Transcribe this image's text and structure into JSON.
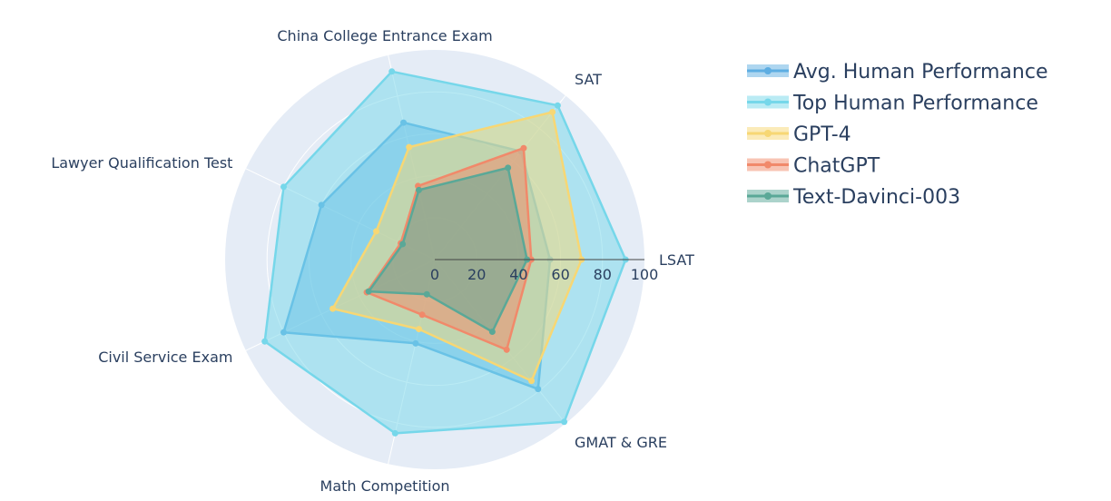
{
  "chart_data": {
    "type": "radar",
    "title": "",
    "axes": [
      "LSAT",
      "SAT",
      "China College Entrance Exam",
      "Lawyer Qualification Test",
      "Civil Service Exam",
      "Math Competition",
      "GMAT & GRE"
    ],
    "radial_range": [
      0,
      100
    ],
    "radial_ticks": [
      "0",
      "20",
      "40",
      "60",
      "80",
      "100"
    ],
    "grid": true,
    "legend_position": "top-right",
    "background_color": "#e5ecf6",
    "series": [
      {
        "name": "Avg. Human Performance",
        "color": "#5dade2",
        "values": [
          55,
          66,
          67,
          60,
          80,
          41,
          79
        ]
      },
      {
        "name": "Top Human Performance",
        "color": "#76d7ea",
        "values": [
          91,
          94,
          92,
          80,
          90,
          85,
          99
        ]
      },
      {
        "name": "GPT-4",
        "color": "#f7d774",
        "values": [
          70,
          90,
          55,
          31,
          54,
          34,
          74
        ]
      },
      {
        "name": "ChatGPT",
        "color": "#f1896a",
        "values": [
          46,
          68,
          36,
          18,
          36,
          27,
          55
        ]
      },
      {
        "name": "Text-Davinci-003",
        "color": "#5aa897",
        "values": [
          44,
          56,
          34,
          17,
          35,
          17,
          44
        ]
      }
    ]
  }
}
